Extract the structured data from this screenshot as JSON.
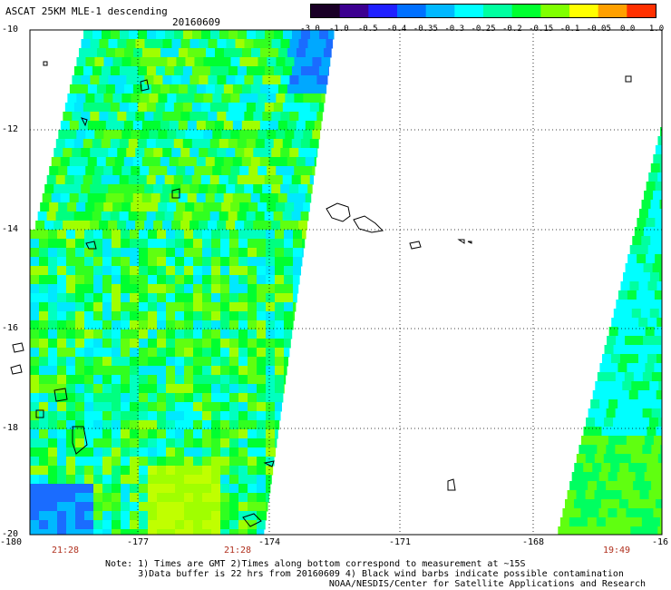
{
  "header": {
    "title": "ASCAT 25KM MLE-1 descending",
    "date": "20160609"
  },
  "colorbar": {
    "labels": [
      "-3.0",
      "-1.0",
      "-0.5",
      "-0.4",
      "-0.35",
      "-0.3",
      "-0.25",
      "-0.2",
      "-0.15",
      "-0.1",
      "-0.05",
      "0.0",
      "1.0"
    ],
    "colors": [
      "#1a0026",
      "#3c0090",
      "#2020ff",
      "#0070ff",
      "#00b8ff",
      "#00ffff",
      "#00ffa0",
      "#00ff30",
      "#80ff00",
      "#ffff00",
      "#ffa000",
      "#ff3000"
    ]
  },
  "map": {
    "lat_labels": [
      "-10",
      "-12",
      "-14",
      "-16",
      "-18",
      "-20"
    ],
    "lon_labels": [
      "-180",
      "-177",
      "-174",
      "-171",
      "-168",
      "-16"
    ],
    "pass_times": [
      "21:28",
      "21:28",
      "19:49"
    ]
  },
  "notes": {
    "line1": "Note: 1) Times are GMT 2)Times along bottom correspond to measurement at ~15S",
    "line2": "      3)Data buffer is 22 hrs from 20160609 4) Black wind barbs indicate possible contamination",
    "line3": "                                         NOAA/NESDIS/Center for Satellite Applications and Research"
  }
}
